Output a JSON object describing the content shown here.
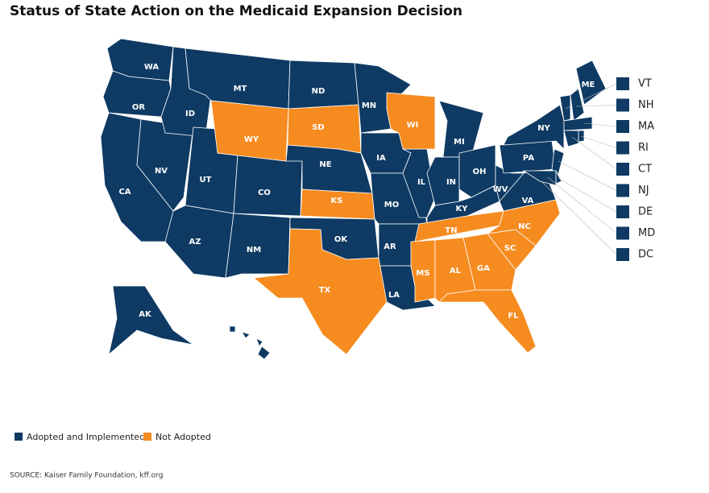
{
  "title": "Status of State Action on the Medicaid Expansion Decision",
  "legend": [
    {
      "label": "Adopted and Implemented",
      "color": "#0e3a63",
      "states": [
        "WA",
        "OR",
        "CA",
        "NV",
        "ID",
        "MT",
        "UT",
        "AZ",
        "CO",
        "NM",
        "ND",
        "NE",
        "OK",
        "MN",
        "IA",
        "MO",
        "AR",
        "LA",
        "IL",
        "MI",
        "IN",
        "OH",
        "KY",
        "WV",
        "VA",
        "PA",
        "NY",
        "ME",
        "AK",
        "HI",
        "VT",
        "NH",
        "MA",
        "RI",
        "CT",
        "NJ",
        "DE",
        "MD",
        "DC"
      ]
    },
    {
      "label": "Not Adopted",
      "color": "#f68b1f",
      "states": [
        "WY",
        "SD",
        "KS",
        "TX",
        "WI",
        "TN",
        "MS",
        "AL",
        "GA",
        "FL",
        "SC",
        "NC"
      ]
    }
  ],
  "source": "SOURCE: Kaiser Family Foundation, kff.org"
}
